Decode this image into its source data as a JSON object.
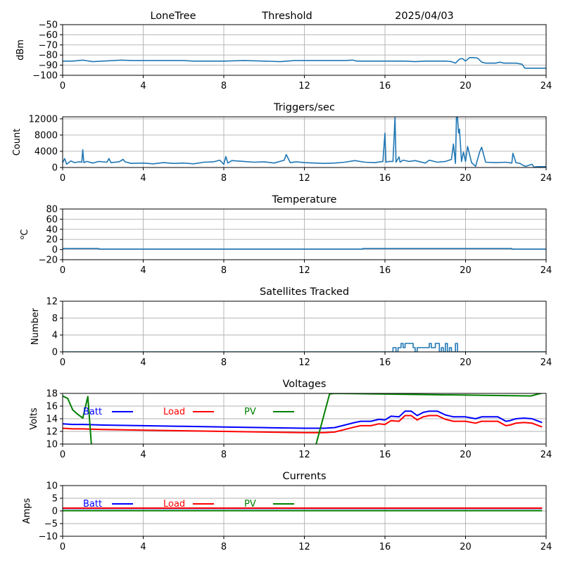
{
  "header": {
    "station": "LoneTree",
    "mode": "Threshold",
    "date": "2025/04/03"
  },
  "chart_data": [
    {
      "id": "signal",
      "type": "line",
      "title": "",
      "xlabel": "",
      "ylabel": "dBm",
      "xlim": [
        0,
        24
      ],
      "ylim": [
        -100,
        -50
      ],
      "xticks": [
        0,
        4,
        8,
        12,
        16,
        20,
        24
      ],
      "yticks": [
        -100,
        -90,
        -80,
        -70,
        -60,
        -50
      ],
      "ytick_labels": [
        "−100",
        "−90",
        "−80",
        "−70",
        "−60",
        "−50"
      ],
      "grid": true,
      "series": [
        {
          "name": "signal",
          "color": "#1f77b4",
          "x": [
            0,
            0.5,
            1.0,
            1.5,
            2.0,
            2.5,
            2.9,
            3.5,
            4.0,
            5.0,
            6.0,
            6.5,
            7.0,
            8.0,
            9.0,
            10.0,
            10.8,
            11.5,
            12.0,
            13.0,
            14.0,
            14.4,
            14.6,
            15.0,
            16.0,
            17.0,
            17.5,
            18.0,
            19.0,
            19.3,
            19.5,
            19.7,
            19.85,
            20.0,
            20.2,
            20.4,
            20.6,
            20.8,
            21.0,
            21.5,
            21.7,
            21.9,
            22.2,
            22.5,
            22.8,
            22.95,
            23.5,
            24.0
          ],
          "y": [
            -86,
            -86,
            -85,
            -86.5,
            -86,
            -85.5,
            -85,
            -85.5,
            -85.5,
            -85.5,
            -85.5,
            -86,
            -86,
            -86,
            -85.5,
            -86,
            -86.5,
            -85.5,
            -85.5,
            -85.5,
            -85.5,
            -85,
            -86,
            -86,
            -86,
            -86,
            -86.5,
            -86,
            -86,
            -86.5,
            -88,
            -84,
            -83.5,
            -86,
            -82.5,
            -82.5,
            -83,
            -87,
            -88,
            -88,
            -87,
            -88,
            -88,
            -88,
            -89,
            -93,
            -93,
            -93
          ]
        }
      ]
    },
    {
      "id": "triggers",
      "type": "line",
      "title": "Triggers/sec",
      "xlabel": "",
      "ylabel": "Count",
      "xlim": [
        0,
        24
      ],
      "ylim": [
        0,
        12500
      ],
      "xticks": [
        0,
        4,
        8,
        12,
        16,
        20,
        24
      ],
      "yticks": [
        0,
        4000,
        8000,
        12000
      ],
      "ytick_labels": [
        "0",
        "4000",
        "8000",
        "12000"
      ],
      "grid": true,
      "series": [
        {
          "name": "triggers",
          "color": "#1f77b4",
          "x": [
            0,
            0.1,
            0.2,
            0.4,
            0.6,
            0.8,
            0.95,
            1.0,
            1.05,
            1.2,
            1.5,
            1.8,
            2.2,
            2.3,
            2.4,
            2.8,
            3.0,
            3.1,
            3.4,
            4.0,
            4.5,
            5.0,
            5.5,
            6.0,
            6.5,
            7.0,
            7.5,
            7.8,
            8.0,
            8.1,
            8.2,
            8.4,
            9.0,
            9.5,
            10.0,
            10.5,
            11.0,
            11.1,
            11.3,
            11.6,
            12.0,
            12.5,
            13.0,
            13.5,
            14.0,
            14.5,
            15.0,
            15.5,
            15.9,
            16.0,
            16.05,
            16.2,
            16.4,
            16.5,
            16.55,
            16.7,
            16.75,
            16.9,
            17.2,
            17.5,
            18.0,
            18.2,
            18.6,
            19.0,
            19.3,
            19.4,
            19.5,
            19.55,
            19.6,
            19.65,
            19.7,
            19.8,
            19.9,
            20.0,
            20.1,
            20.3,
            20.5,
            20.7,
            20.8,
            21.0,
            21.5,
            22.0,
            22.3,
            22.35,
            22.5,
            22.7,
            22.9,
            23.0,
            23.3,
            23.4,
            23.6,
            24.0
          ],
          "y": [
            1200,
            2200,
            800,
            1600,
            1200,
            1400,
            1300,
            4400,
            1200,
            1500,
            1100,
            1500,
            1300,
            2200,
            1200,
            1400,
            2000,
            1400,
            1000,
            1100,
            900,
            1200,
            1000,
            1100,
            900,
            1300,
            1400,
            1800,
            800,
            2700,
            1100,
            1700,
            1500,
            1300,
            1400,
            1100,
            1800,
            3200,
            1200,
            1400,
            1200,
            1100,
            1000,
            1100,
            1300,
            1700,
            1300,
            1200,
            1500,
            8500,
            1300,
            1500,
            1500,
            12500,
            1300,
            2600,
            1300,
            1800,
            1500,
            1700,
            1100,
            1800,
            1300,
            1500,
            2000,
            5800,
            1000,
            12500,
            12500,
            8500,
            9500,
            1500,
            3800,
            1500,
            5200,
            1200,
            300,
            3800,
            5000,
            1300,
            1200,
            1300,
            1100,
            3500,
            1200,
            1000,
            400,
            300,
            800,
            100,
            200,
            200
          ]
        }
      ]
    },
    {
      "id": "temperature",
      "type": "line",
      "title": "Temperature",
      "xlabel": "",
      "ylabel": "°C",
      "ylabel_parts": [
        "o",
        "C"
      ],
      "xlim": [
        0,
        24
      ],
      "ylim": [
        -20,
        80
      ],
      "xticks": [
        0,
        4,
        8,
        12,
        16,
        20,
        24
      ],
      "yticks": [
        -20,
        0,
        20,
        40,
        60,
        80
      ],
      "ytick_labels": [
        "−20",
        "0",
        "20",
        "40",
        "60",
        "80"
      ],
      "grid": true,
      "series": [
        {
          "name": "temperature",
          "color": "#1f77b4",
          "x": [
            0,
            1.8,
            1.8,
            14.9,
            14.9,
            22.3,
            22.3,
            24
          ],
          "y": [
            2,
            2,
            1,
            1,
            2,
            2,
            1,
            1
          ]
        }
      ]
    },
    {
      "id": "satellites",
      "type": "line",
      "title": "Satellites Tracked",
      "xlabel": "",
      "ylabel": "Number",
      "xlim": [
        0,
        24
      ],
      "ylim": [
        0,
        12
      ],
      "xticks": [
        0,
        4,
        8,
        12,
        16,
        20,
        24
      ],
      "yticks": [
        0,
        4,
        8,
        12
      ],
      "ytick_labels": [
        "0",
        "4",
        "8",
        "12"
      ],
      "grid": true,
      "series": [
        {
          "name": "satellites",
          "color": "#1f77b4",
          "x": [
            0,
            16.4,
            16.4,
            16.55,
            16.55,
            16.65,
            16.65,
            16.8,
            16.8,
            16.9,
            16.9,
            17.0,
            17.0,
            17.1,
            17.1,
            17.4,
            17.4,
            17.5,
            17.5,
            17.6,
            17.6,
            18.2,
            18.2,
            18.3,
            18.3,
            18.5,
            18.5,
            18.7,
            18.7,
            18.8,
            18.8,
            18.9,
            18.9,
            19.0,
            19.0,
            19.1,
            19.1,
            19.2,
            19.2,
            19.3,
            19.3,
            19.5,
            19.5,
            19.6,
            19.6,
            24
          ],
          "y": [
            0,
            0,
            1,
            1,
            0,
            0,
            1,
            1,
            2,
            2,
            1,
            1,
            2,
            2,
            2,
            2,
            1,
            1,
            0,
            0,
            1,
            1,
            2,
            2,
            1,
            1,
            2,
            2,
            0,
            0,
            1,
            1,
            0,
            0,
            2,
            2,
            0,
            0,
            1,
            1,
            0,
            0,
            2,
            2,
            0,
            0
          ]
        }
      ]
    },
    {
      "id": "voltages",
      "type": "line",
      "title": "Voltages",
      "xlabel": "",
      "ylabel": "Volts",
      "xlim": [
        0,
        24
      ],
      "ylim": [
        10,
        18
      ],
      "xticks": [
        0,
        4,
        8,
        12,
        16,
        20,
        24
      ],
      "yticks": [
        10,
        12,
        14,
        16,
        18
      ],
      "ytick_labels": [
        "10",
        "12",
        "14",
        "16",
        "18"
      ],
      "grid": true,
      "legend": {
        "placement": "top-inline",
        "entries": [
          "Batt",
          "Load",
          "PV"
        ]
      },
      "series": [
        {
          "name": "Batt",
          "color": "#0000ff",
          "x": [
            0,
            0.5,
            1,
            2,
            4,
            6,
            8,
            10,
            12,
            13,
            13.5,
            14,
            14.5,
            14.8,
            15.3,
            15.7,
            16.0,
            16.3,
            16.7,
            17.0,
            17.3,
            17.6,
            17.9,
            18.2,
            18.6,
            19.0,
            19.4,
            19.8,
            20.0,
            20.5,
            20.8,
            21.2,
            21.6,
            22.0,
            22.2,
            22.5,
            22.9,
            23.3,
            23.8
          ],
          "y": [
            13.2,
            13.1,
            13.1,
            13.0,
            12.9,
            12.8,
            12.7,
            12.6,
            12.5,
            12.5,
            12.6,
            13.0,
            13.4,
            13.6,
            13.6,
            13.9,
            13.8,
            14.4,
            14.3,
            15.2,
            15.2,
            14.5,
            15.0,
            15.2,
            15.2,
            14.6,
            14.3,
            14.3,
            14.3,
            14.0,
            14.3,
            14.3,
            14.3,
            13.6,
            13.7,
            14.0,
            14.1,
            14.0,
            13.4
          ]
        },
        {
          "name": "Load",
          "color": "#ff0000",
          "x": [
            0,
            0.5,
            1,
            2,
            4,
            6,
            8,
            10,
            12,
            13,
            13.5,
            14,
            14.5,
            14.8,
            15.3,
            15.7,
            16.0,
            16.3,
            16.7,
            17.0,
            17.3,
            17.6,
            17.9,
            18.2,
            18.6,
            19.0,
            19.4,
            19.8,
            20.0,
            20.5,
            20.8,
            21.2,
            21.6,
            22.0,
            22.2,
            22.5,
            22.9,
            23.3,
            23.8
          ],
          "y": [
            12.5,
            12.4,
            12.4,
            12.3,
            12.2,
            12.1,
            12.0,
            11.9,
            11.8,
            11.8,
            11.9,
            12.3,
            12.7,
            12.9,
            12.9,
            13.2,
            13.1,
            13.7,
            13.6,
            14.5,
            14.5,
            13.8,
            14.3,
            14.5,
            14.5,
            13.9,
            13.6,
            13.6,
            13.6,
            13.3,
            13.6,
            13.6,
            13.6,
            12.9,
            13.0,
            13.3,
            13.4,
            13.3,
            12.7
          ]
        },
        {
          "name": "PV",
          "color": "#008000",
          "x": [
            0,
            0.25,
            0.5,
            0.75,
            1.0,
            1.25,
            1.45,
            12.5,
            13.25,
            13.5,
            23.25,
            23.6,
            24
          ],
          "y": [
            17.6,
            17.2,
            15.4,
            14.7,
            14.1,
            17.5,
            9.0,
            9.0,
            17.9,
            18.0,
            17.6,
            17.9,
            18.2
          ]
        }
      ]
    },
    {
      "id": "currents",
      "type": "line",
      "title": "Currents",
      "xlabel": "",
      "ylabel": "Amps",
      "xlim": [
        0,
        24
      ],
      "ylim": [
        -10,
        10
      ],
      "xticks": [
        0,
        4,
        8,
        12,
        16,
        20,
        24
      ],
      "yticks": [
        -10,
        -5,
        0,
        5,
        10
      ],
      "ytick_labels": [
        "−10",
        "−5",
        "0",
        "5",
        "10"
      ],
      "grid": true,
      "legend": {
        "placement": "top-inline",
        "entries": [
          "Batt",
          "Load",
          "PV"
        ]
      },
      "series": [
        {
          "name": "Batt",
          "color": "#0000ff",
          "x": [
            0,
            23.8
          ],
          "y": [
            1.0,
            1.0
          ]
        },
        {
          "name": "Load",
          "color": "#ff0000",
          "x": [
            0,
            23.8
          ],
          "y": [
            1.1,
            1.1
          ]
        },
        {
          "name": "PV",
          "color": "#008000",
          "x": [
            0,
            23.8
          ],
          "y": [
            0.1,
            0.1
          ]
        }
      ]
    }
  ]
}
